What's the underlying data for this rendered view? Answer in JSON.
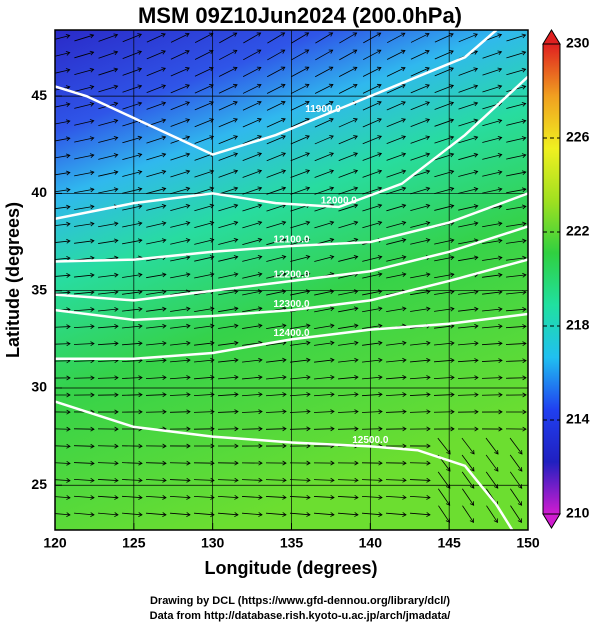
{
  "chart_data": {
    "type": "contour-map",
    "title": "MSM 09Z10Jun2024 (200.0hPa)",
    "x_label": "Longitude (degrees)",
    "y_label": "Latitude  (degrees)",
    "xlim": [
      120,
      150
    ],
    "ylim": [
      22.7,
      48.4
    ],
    "xticks": [
      120,
      125,
      130,
      135,
      140,
      145,
      150
    ],
    "yticks": [
      25,
      30,
      35,
      40,
      45
    ],
    "grid": true,
    "contour_color": "#ffffff",
    "contours": [
      {
        "label": "11900.0",
        "x": [
          120,
          122,
          126,
          130,
          134,
          137,
          140,
          143,
          146,
          148
        ],
        "y": [
          45.5,
          45,
          43.5,
          42,
          43,
          44,
          45,
          46,
          47,
          48.4
        ]
      },
      {
        "label": "12000.0",
        "x": [
          120,
          125,
          130,
          134,
          138,
          142,
          146,
          150
        ],
        "y": [
          38.7,
          39.5,
          40,
          39.5,
          39.3,
          40.5,
          43,
          46
        ]
      },
      {
        "label": "12100.0",
        "x": [
          120,
          125,
          130,
          135,
          140,
          145,
          150
        ],
        "y": [
          36.5,
          36.6,
          37,
          37.3,
          37.5,
          38.5,
          40
        ]
      },
      {
        "label": "12200.0",
        "x": [
          120,
          125,
          130,
          135,
          140,
          145,
          150
        ],
        "y": [
          34.8,
          34.5,
          35,
          35.5,
          36,
          37,
          38.3
        ]
      },
      {
        "label": "12300.0",
        "x": [
          120,
          125,
          130,
          135,
          140,
          145,
          150
        ],
        "y": [
          34,
          33.5,
          33.7,
          34,
          34.5,
          35.5,
          36.6
        ]
      },
      {
        "label": "12400.0",
        "x": [
          120,
          125,
          130,
          135,
          140,
          145,
          150
        ],
        "y": [
          31.5,
          31.5,
          31.8,
          32.5,
          33,
          33.3,
          33.8
        ]
      },
      {
        "label": "12500.0",
        "x": [
          120,
          125,
          130,
          135,
          140,
          143,
          146,
          148,
          149
        ],
        "y": [
          29.3,
          28,
          27.5,
          27.2,
          27,
          26.8,
          26,
          24,
          22.7
        ]
      }
    ],
    "colorbar": {
      "lim": [
        210,
        230
      ],
      "ticks": [
        210,
        214,
        218,
        222,
        226,
        230
      ],
      "colors": [
        "#d01cd0",
        "#2020c0",
        "#2040f0",
        "#20c0f0",
        "#20e0a0",
        "#30d040",
        "#a0e020",
        "#f0f020",
        "#f0a020",
        "#e02020"
      ]
    },
    "footer": [
      "Drawing by DCL (https://www.gfd-dennou.org/library/dcl/)",
      "Data from http://database.rish.kyoto-u.ac.jp/arch/jmadata/"
    ]
  }
}
